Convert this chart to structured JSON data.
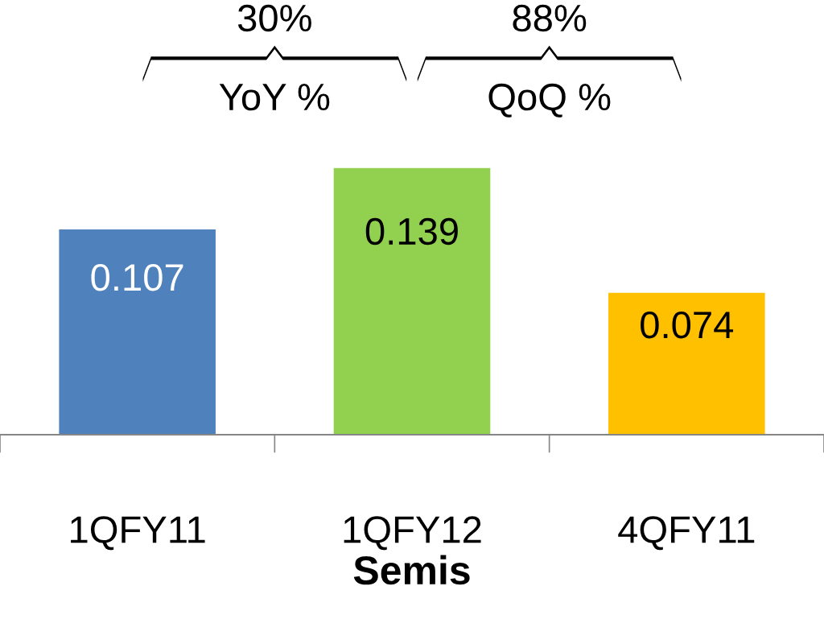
{
  "chart_data": {
    "type": "bar",
    "xlabel": "Semis",
    "categories": [
      "1QFY11",
      "1QFY12",
      "4QFY11"
    ],
    "values": [
      0.107,
      0.139,
      0.074
    ],
    "colors": [
      "#4f81bd",
      "#92d050",
      "#ffc000"
    ],
    "data_labels": true,
    "grid": false,
    "legend": false,
    "annotations": [
      "30%",
      "YoY %",
      "88%",
      "QoQ %"
    ]
  }
}
